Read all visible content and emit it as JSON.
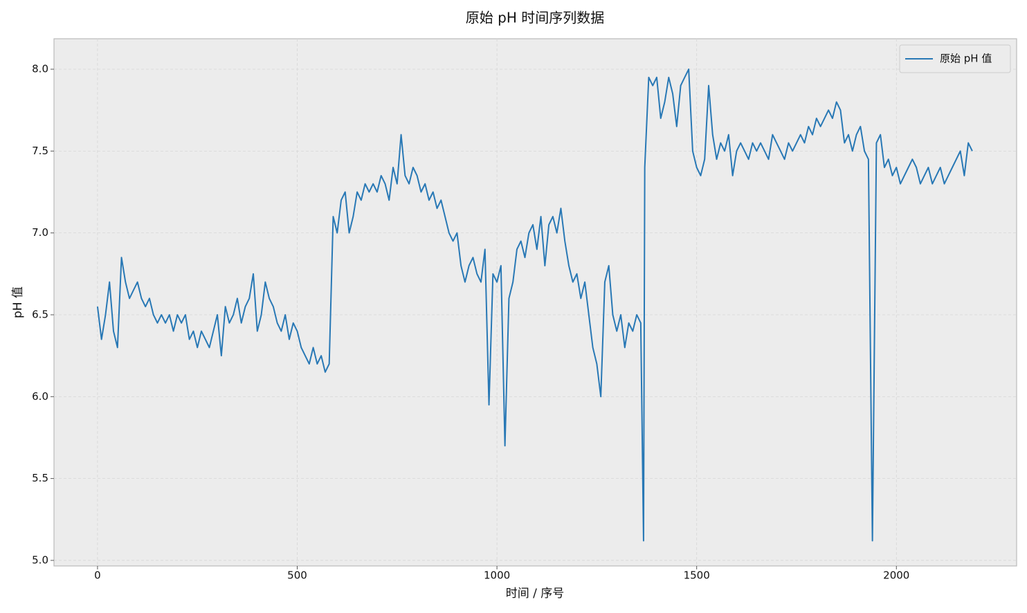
{
  "chart_data": {
    "type": "line",
    "title": "原始 pH 时间序列数据",
    "xlabel": "时间 / 序号",
    "ylabel": "pH 值",
    "x": [
      0,
      10,
      20,
      30,
      40,
      50,
      60,
      70,
      80,
      90,
      100,
      110,
      120,
      130,
      140,
      150,
      160,
      170,
      180,
      190,
      200,
      210,
      220,
      230,
      240,
      250,
      260,
      270,
      280,
      290,
      300,
      310,
      320,
      330,
      340,
      350,
      360,
      370,
      380,
      390,
      400,
      410,
      420,
      430,
      440,
      450,
      460,
      470,
      480,
      490,
      500,
      510,
      520,
      530,
      540,
      550,
      560,
      570,
      580,
      590,
      600,
      610,
      620,
      630,
      640,
      650,
      660,
      670,
      680,
      690,
      700,
      710,
      720,
      730,
      740,
      750,
      760,
      770,
      780,
      790,
      800,
      810,
      820,
      830,
      840,
      850,
      860,
      870,
      880,
      890,
      900,
      910,
      920,
      930,
      940,
      950,
      960,
      970,
      980,
      990,
      1000,
      1010,
      1020,
      1030,
      1040,
      1050,
      1060,
      1070,
      1080,
      1090,
      1100,
      1110,
      1120,
      1130,
      1140,
      1150,
      1160,
      1170,
      1180,
      1190,
      1200,
      1210,
      1220,
      1230,
      1240,
      1250,
      1260,
      1270,
      1280,
      1290,
      1300,
      1310,
      1320,
      1330,
      1340,
      1350,
      1360,
      1367,
      1370,
      1380,
      1390,
      1400,
      1410,
      1420,
      1430,
      1440,
      1450,
      1460,
      1470,
      1480,
      1490,
      1500,
      1510,
      1520,
      1530,
      1540,
      1550,
      1560,
      1570,
      1580,
      1590,
      1600,
      1610,
      1620,
      1630,
      1640,
      1650,
      1660,
      1670,
      1680,
      1690,
      1700,
      1710,
      1720,
      1730,
      1740,
      1750,
      1760,
      1770,
      1780,
      1790,
      1800,
      1810,
      1820,
      1830,
      1840,
      1850,
      1860,
      1870,
      1880,
      1890,
      1900,
      1910,
      1920,
      1930,
      1940,
      1950,
      1960,
      1970,
      1980,
      1990,
      2000,
      2010,
      2020,
      2030,
      2040,
      2050,
      2060,
      2070,
      2080,
      2090,
      2100,
      2110,
      2120,
      2130,
      2140,
      2150,
      2160,
      2170,
      2180,
      2190
    ],
    "series": [
      {
        "name": "原始 pH 值",
        "color": "#2878b5",
        "values": [
          6.55,
          6.35,
          6.5,
          6.7,
          6.4,
          6.3,
          6.85,
          6.7,
          6.6,
          6.65,
          6.7,
          6.6,
          6.55,
          6.6,
          6.5,
          6.45,
          6.5,
          6.45,
          6.5,
          6.4,
          6.5,
          6.45,
          6.5,
          6.35,
          6.4,
          6.3,
          6.4,
          6.35,
          6.3,
          6.4,
          6.5,
          6.25,
          6.55,
          6.45,
          6.5,
          6.6,
          6.45,
          6.55,
          6.6,
          6.75,
          6.4,
          6.5,
          6.7,
          6.6,
          6.55,
          6.45,
          6.4,
          6.5,
          6.35,
          6.45,
          6.4,
          6.3,
          6.25,
          6.2,
          6.3,
          6.2,
          6.25,
          6.15,
          6.2,
          7.1,
          7.0,
          7.2,
          7.25,
          7.0,
          7.1,
          7.25,
          7.2,
          7.3,
          7.25,
          7.3,
          7.25,
          7.35,
          7.3,
          7.2,
          7.4,
          7.3,
          7.6,
          7.35,
          7.3,
          7.4,
          7.35,
          7.25,
          7.3,
          7.2,
          7.25,
          7.15,
          7.2,
          7.1,
          7.0,
          6.95,
          7.0,
          6.8,
          6.7,
          6.8,
          6.85,
          6.75,
          6.7,
          6.9,
          5.95,
          6.75,
          6.7,
          6.8,
          5.7,
          6.6,
          6.7,
          6.9,
          6.95,
          6.85,
          7.0,
          7.05,
          6.9,
          7.1,
          6.8,
          7.05,
          7.1,
          7.0,
          7.15,
          6.95,
          6.8,
          6.7,
          6.75,
          6.6,
          6.7,
          6.5,
          6.3,
          6.2,
          6.0,
          6.7,
          6.8,
          6.5,
          6.4,
          6.5,
          6.3,
          6.45,
          6.4,
          6.5,
          6.45,
          5.12,
          7.4,
          7.95,
          7.9,
          7.95,
          7.7,
          7.8,
          7.95,
          7.85,
          7.65,
          7.9,
          7.95,
          8.0,
          7.5,
          7.4,
          7.35,
          7.45,
          7.9,
          7.6,
          7.45,
          7.55,
          7.5,
          7.6,
          7.35,
          7.5,
          7.55,
          7.5,
          7.45,
          7.55,
          7.5,
          7.55,
          7.5,
          7.45,
          7.6,
          7.55,
          7.5,
          7.45,
          7.55,
          7.5,
          7.55,
          7.6,
          7.55,
          7.65,
          7.6,
          7.7,
          7.65,
          7.7,
          7.75,
          7.7,
          7.8,
          7.75,
          7.55,
          7.6,
          7.5,
          7.6,
          7.65,
          7.5,
          7.45,
          5.12,
          7.55,
          7.6,
          7.4,
          7.45,
          7.35,
          7.4,
          7.3,
          7.35,
          7.4,
          7.45,
          7.4,
          7.3,
          7.35,
          7.4,
          7.3,
          7.35,
          7.4,
          7.3,
          7.35,
          7.4,
          7.45,
          7.5,
          7.35,
          7.55,
          7.5
        ]
      }
    ],
    "xlim": [
      -109,
      2301
    ],
    "ylim": [
      4.966,
      8.186
    ],
    "xticks": [
      0,
      500,
      1000,
      1500,
      2000
    ],
    "yticks": [
      {
        "value": 5,
        "label": "5.0"
      },
      5.5,
      {
        "value": 6,
        "label": "6.0"
      },
      6.5,
      {
        "value": 7,
        "label": "7.0"
      },
      7.5,
      {
        "value": 8,
        "label": "8.0"
      }
    ],
    "grid": true,
    "legend": "upper right"
  }
}
